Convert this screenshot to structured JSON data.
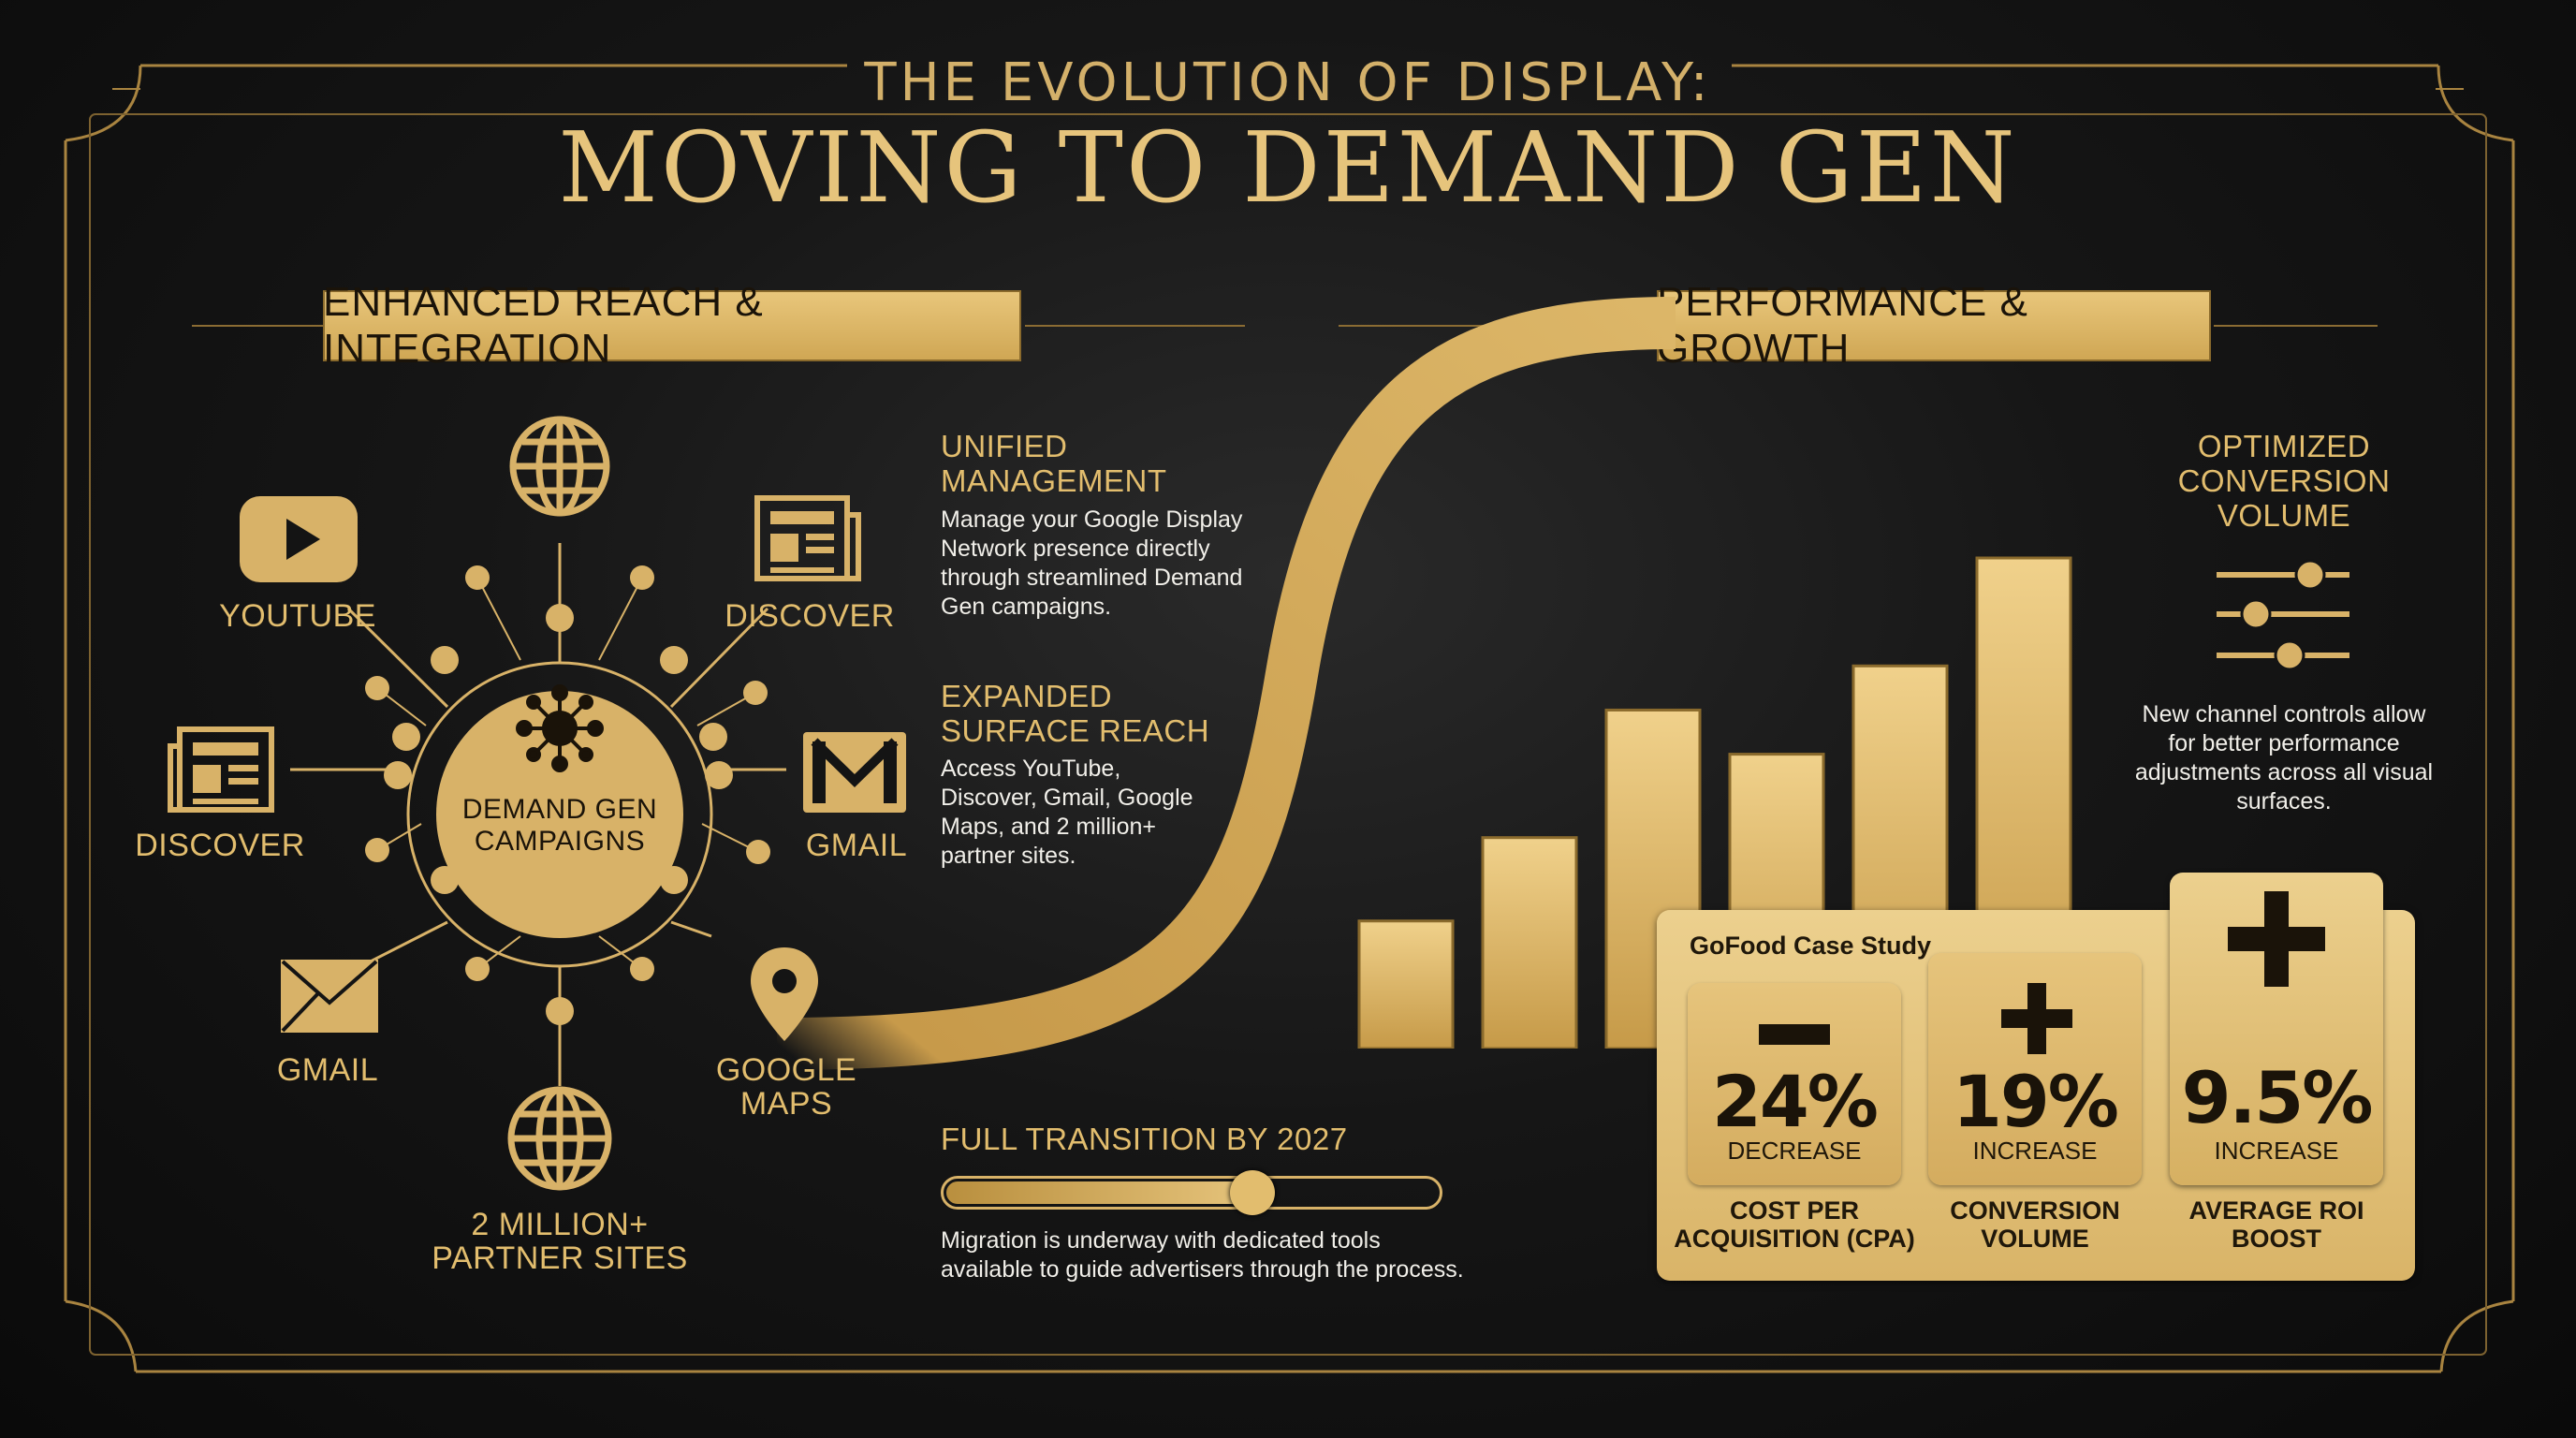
{
  "header": {
    "subtitle": "THE EVOLUTION OF DISPLAY:",
    "title": "MOVING TO DEMAND GEN"
  },
  "left_section": {
    "badge": "ENHANCED REACH & INTEGRATION",
    "hub_label": "DEMAND GEN CAMPAIGNS",
    "channels": [
      {
        "label": "YOUTUBE",
        "icon": "youtube-play-icon"
      },
      {
        "label": "DISCOVER",
        "icon": "newspaper-icon"
      },
      {
        "label": "DISCOVER",
        "icon": "newspaper-icon"
      },
      {
        "label": "GMAIL",
        "icon": "mail-icon"
      },
      {
        "label": "GMAIL",
        "icon": "envelope-icon"
      },
      {
        "label": "GOOGLE MAPS",
        "icon": "map-pin-icon"
      },
      {
        "label": "2 MILLION+ PARTNER SITES",
        "icon": "globe-icon"
      }
    ]
  },
  "middle_section": {
    "unified": {
      "heading": "UNIFIED MANAGEMENT",
      "body": "Manage your Google Display Network presence directly through streamlined Demand Gen campaigns."
    },
    "expanded": {
      "heading": "EXPANDED SURFACE REACH",
      "body": "Access YouTube, Discover, Gmail, Google Maps, and 2 million+ partner sites."
    },
    "transition": {
      "heading": "FULL TRANSITION BY 2027",
      "progress": 0.63,
      "body": "Migration is underway with dedicated tools available to guide advertisers through the process."
    }
  },
  "right_section": {
    "badge": "PERFORMANCE & GROWTH",
    "optimized": {
      "heading": "OPTIMIZED CONVERSION VOLUME",
      "icon": "sliders-icon",
      "body": "New channel controls allow for better performance adjustments across all visual surfaces."
    },
    "bars": [
      0.26,
      0.43,
      0.69,
      0.6,
      0.78,
      1.0
    ],
    "case_study": {
      "title": "GoFood Case Study",
      "metrics": [
        {
          "sign": "−",
          "value": "24%",
          "change": "DECREASE",
          "caption": "COST PER ACQUISITION (CPA)"
        },
        {
          "sign": "+",
          "value": "19%",
          "change": "INCREASE",
          "caption": "CONVERSION VOLUME"
        },
        {
          "sign": "+",
          "value": "9.5%",
          "change": "INCREASE",
          "caption": "AVERAGE ROI BOOST"
        }
      ]
    }
  },
  "colors": {
    "gold": "#e2bd6e",
    "gold_dark": "#b98f3e",
    "background": "#141414",
    "ink": "#1a1309"
  }
}
